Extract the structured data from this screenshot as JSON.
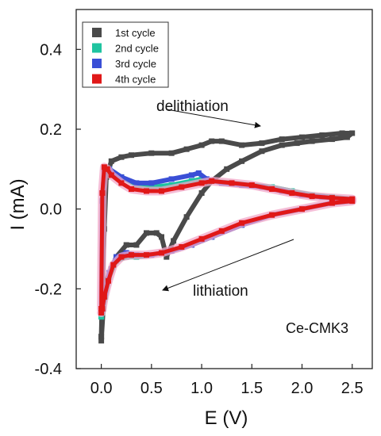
{
  "chart_data": {
    "type": "line",
    "xlabel": "E (V)",
    "ylabel": "I (mA)",
    "xlim": [
      -0.25,
      2.7
    ],
    "ylim": [
      -0.4,
      0.5
    ],
    "xticks": [
      "0.0",
      "0.5",
      "1.0",
      "1.5",
      "2.0",
      "2.5"
    ],
    "xtick_values": [
      0.0,
      0.5,
      1.0,
      1.5,
      2.0,
      2.5
    ],
    "yticks": [
      "-0.4",
      "-0.2",
      "0.0",
      "0.2",
      "0.4"
    ],
    "ytick_values": [
      -0.4,
      -0.2,
      0.0,
      0.2,
      0.4
    ],
    "legend_position": "top-left",
    "annotations": [
      {
        "text": "delithiation"
      },
      {
        "text": "lithiation"
      },
      {
        "text": "Ce-CMK3"
      }
    ],
    "series": [
      {
        "name": "1st cycle",
        "color": "#4a4a4a",
        "x": [
          0.0,
          0.01,
          0.03,
          0.05,
          0.1,
          0.2,
          0.3,
          0.5,
          0.7,
          0.85,
          1.0,
          1.1,
          1.2,
          1.4,
          1.6,
          1.8,
          2.0,
          2.2,
          2.4,
          2.5,
          2.45,
          2.3,
          2.1,
          1.95,
          1.8,
          1.6,
          1.4,
          1.25,
          1.1,
          1.0,
          0.85,
          0.72,
          0.65,
          0.6,
          0.55,
          0.45,
          0.35,
          0.25,
          0.15,
          0.1,
          0.05,
          0.02,
          0.0,
          0.0
        ],
        "y": [
          -0.32,
          -0.2,
          -0.05,
          0.08,
          0.12,
          0.13,
          0.135,
          0.14,
          0.14,
          0.15,
          0.16,
          0.17,
          0.17,
          0.16,
          0.165,
          0.175,
          0.18,
          0.185,
          0.19,
          0.19,
          0.18,
          0.175,
          0.17,
          0.165,
          0.16,
          0.145,
          0.12,
          0.1,
          0.07,
          0.04,
          -0.02,
          -0.08,
          -0.12,
          -0.07,
          -0.06,
          -0.06,
          -0.09,
          -0.09,
          -0.12,
          -0.15,
          -0.18,
          -0.25,
          -0.33,
          -0.32
        ]
      },
      {
        "name": "2nd cycle",
        "color": "#1fc4a0",
        "x": [
          0.0,
          0.01,
          0.03,
          0.08,
          0.2,
          0.35,
          0.5,
          0.7,
          0.9,
          1.0,
          1.1,
          1.3,
          1.5,
          1.7,
          1.9,
          2.1,
          2.3,
          2.5,
          2.5,
          2.3,
          2.0,
          1.7,
          1.4,
          1.1,
          0.9,
          0.7,
          0.5,
          0.35,
          0.25,
          0.15,
          0.08,
          0.04,
          0.01,
          0.0
        ],
        "y": [
          -0.27,
          0.02,
          0.1,
          0.1,
          0.08,
          0.06,
          0.055,
          0.06,
          0.07,
          0.075,
          0.07,
          0.065,
          0.06,
          0.055,
          0.045,
          0.035,
          0.03,
          0.025,
          0.02,
          0.015,
          0.0,
          -0.015,
          -0.04,
          -0.07,
          -0.09,
          -0.105,
          -0.115,
          -0.12,
          -0.12,
          -0.13,
          -0.17,
          -0.22,
          -0.26,
          -0.27
        ]
      },
      {
        "name": "3rd cycle",
        "color": "#3a4fd6",
        "x": [
          0.0,
          0.01,
          0.03,
          0.08,
          0.2,
          0.35,
          0.5,
          0.7,
          0.9,
          0.97,
          1.05,
          1.2,
          1.4,
          1.6,
          1.8,
          2.0,
          2.2,
          2.4,
          2.5,
          2.5,
          2.3,
          2.0,
          1.7,
          1.4,
          1.1,
          0.9,
          0.7,
          0.5,
          0.35,
          0.25,
          0.15,
          0.08,
          0.04,
          0.01,
          0.0
        ],
        "y": [
          -0.26,
          0.02,
          0.1,
          0.1,
          0.08,
          0.065,
          0.065,
          0.075,
          0.085,
          0.09,
          0.075,
          0.065,
          0.06,
          0.055,
          0.045,
          0.035,
          0.03,
          0.025,
          0.025,
          0.02,
          0.015,
          0.0,
          -0.015,
          -0.04,
          -0.07,
          -0.09,
          -0.105,
          -0.115,
          -0.115,
          -0.11,
          -0.12,
          -0.16,
          -0.21,
          -0.25,
          -0.26
        ]
      },
      {
        "name": "4th cycle",
        "color": "#e01818",
        "x": [
          0.0,
          0.01,
          0.03,
          0.06,
          0.1,
          0.2,
          0.3,
          0.45,
          0.6,
          0.8,
          1.0,
          1.1,
          1.3,
          1.5,
          1.7,
          1.9,
          2.1,
          2.3,
          2.5,
          2.5,
          2.3,
          2.0,
          1.7,
          1.4,
          1.2,
          1.0,
          0.8,
          0.6,
          0.45,
          0.3,
          0.2,
          0.12,
          0.07,
          0.03,
          0.01,
          0.0
        ],
        "y": [
          -0.25,
          0.04,
          0.105,
          0.1,
          0.085,
          0.065,
          0.05,
          0.045,
          0.045,
          0.055,
          0.065,
          0.07,
          0.065,
          0.06,
          0.05,
          0.04,
          0.032,
          0.028,
          0.025,
          0.02,
          0.015,
          0.0,
          -0.015,
          -0.035,
          -0.055,
          -0.075,
          -0.095,
          -0.11,
          -0.115,
          -0.115,
          -0.12,
          -0.14,
          -0.18,
          -0.22,
          -0.25,
          -0.26
        ]
      }
    ]
  }
}
